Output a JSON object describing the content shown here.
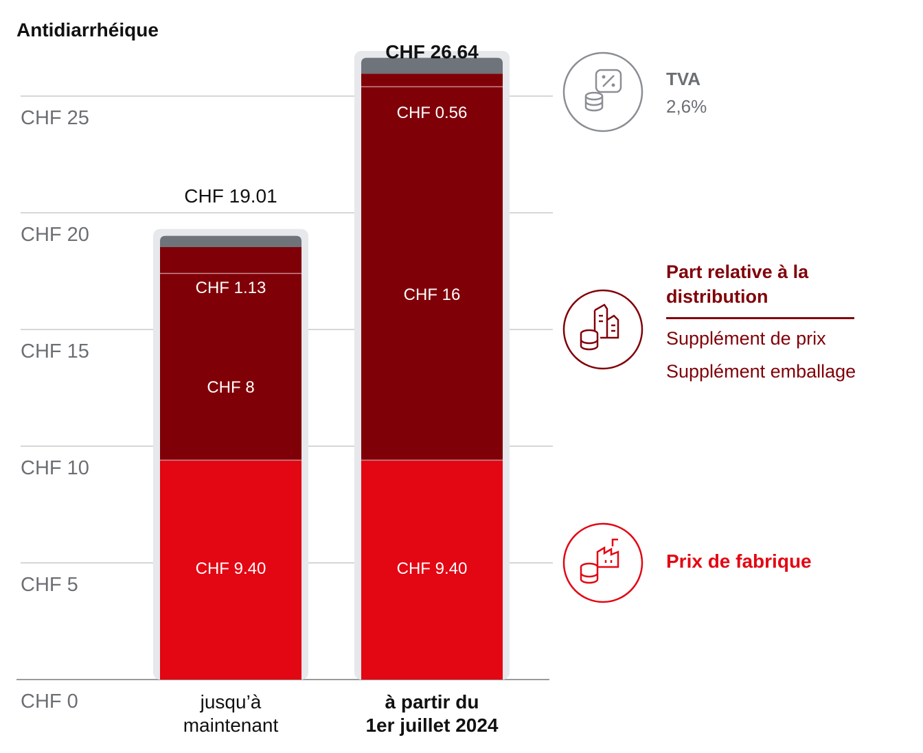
{
  "title": "Antidiarrhéique",
  "chart_data": {
    "type": "bar",
    "stacked": true,
    "categories": [
      "jusqu’à maintenant",
      "à partir du 1er juillet 2024"
    ],
    "series": [
      {
        "name": "Prix de fabrique",
        "values": [
          9.4,
          9.4
        ],
        "labels": [
          "CHF 9.40",
          "CHF 9.40"
        ],
        "color": "#e30613"
      },
      {
        "name": "Supplément de prix",
        "values": [
          8,
          16
        ],
        "labels": [
          "CHF 8",
          "CHF 16"
        ],
        "color": "#800008"
      },
      {
        "name": "Supplément emballage",
        "values": [
          1.13,
          0.56
        ],
        "labels": [
          "CHF 1.13",
          "CHF 0.56"
        ],
        "color": "#800008"
      },
      {
        "name": "TVA",
        "values": [
          0.48,
          0.68
        ],
        "color": "#6f737a"
      }
    ],
    "totals": [
      "CHF 19.01",
      "CHF 26.64"
    ],
    "yticks": [
      "CHF 0",
      "CHF 5",
      "CHF 10",
      "CHF 15",
      "CHF 20",
      "CHF 25"
    ],
    "ylim": [
      0,
      25
    ],
    "grid": true
  },
  "x_labels": [
    {
      "line1": "jusqu’à",
      "line2": "maintenant"
    },
    {
      "line1": "à partir du",
      "line2": "1er juillet 2024"
    }
  ],
  "legend": {
    "tva": {
      "title": "TVA",
      "value": "2,6%",
      "icon": "tax-coin-icon"
    },
    "distribution": {
      "title": "Part relative à la distribution",
      "items": [
        "Supplément de prix",
        "Supplément emballage"
      ],
      "icon": "city-coins-icon"
    },
    "fabrique": {
      "title": "Prix de fabrique",
      "icon": "factory-coins-icon"
    }
  },
  "colors": {
    "fabrique": "#e30613",
    "distribution": "#800008",
    "tva": "#6f737a",
    "grid": "#c8c8c8"
  }
}
